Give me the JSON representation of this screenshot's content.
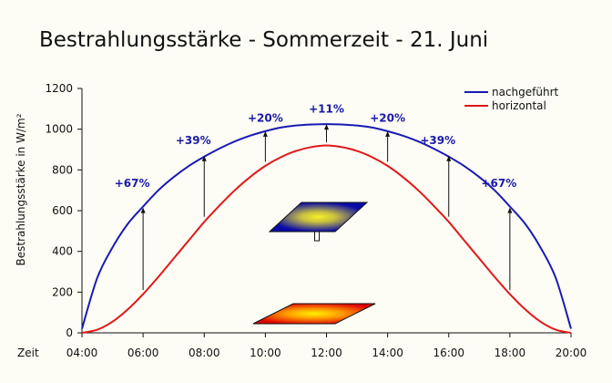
{
  "chart_data": {
    "type": "line",
    "title": "Bestrahlungsstärke - Sommerzeit - 21. Juni",
    "ylabel": "Bestrahlungsstärke in W/m²",
    "xlabel": "Zeit",
    "ylim": [
      0,
      1200
    ],
    "yticks": [
      "0",
      "200",
      "400",
      "600",
      "800",
      "1000",
      "1200"
    ],
    "xlim": [
      "04:00",
      "20:00"
    ],
    "xticks": [
      "04:00",
      "06:00",
      "08:00",
      "10:00",
      "12:00",
      "14:00",
      "16:00",
      "18:00",
      "20:00"
    ],
    "legend_position": "top-right",
    "series": [
      {
        "name": "nachgeführt",
        "color": "#1a1ab4",
        "x": [
          "04:00",
          "04:30",
          "05:00",
          "05:30",
          "06:00",
          "06:30",
          "07:00",
          "07:30",
          "08:00",
          "08:30",
          "09:00",
          "09:30",
          "10:00",
          "10:30",
          "11:00",
          "11:30",
          "12:00",
          "12:30",
          "13:00",
          "13:30",
          "14:00",
          "14:30",
          "15:00",
          "15:30",
          "16:00",
          "16:30",
          "17:00",
          "17:30",
          "18:00",
          "18:30",
          "19:00",
          "19:30",
          "20:00"
        ],
        "values": [
          20,
          270,
          420,
          535,
          620,
          700,
          765,
          820,
          865,
          905,
          940,
          968,
          990,
          1008,
          1018,
          1023,
          1025,
          1023,
          1018,
          1008,
          990,
          968,
          940,
          905,
          865,
          820,
          765,
          700,
          620,
          535,
          420,
          270,
          20
        ]
      },
      {
        "name": "horizontal",
        "color": "#e01818",
        "x": [
          "04:00",
          "04:30",
          "05:00",
          "05:30",
          "06:00",
          "06:30",
          "07:00",
          "07:30",
          "08:00",
          "08:30",
          "09:00",
          "09:30",
          "10:00",
          "10:30",
          "11:00",
          "11:30",
          "12:00",
          "12:30",
          "13:00",
          "13:30",
          "14:00",
          "14:30",
          "15:00",
          "15:30",
          "16:00",
          "16:30",
          "17:00",
          "17:30",
          "18:00",
          "18:30",
          "19:00",
          "19:30",
          "20:00"
        ],
        "values": [
          0,
          15,
          55,
          115,
          190,
          275,
          365,
          455,
          545,
          625,
          700,
          765,
          820,
          862,
          893,
          912,
          920,
          912,
          893,
          862,
          820,
          765,
          700,
          625,
          545,
          455,
          365,
          275,
          190,
          115,
          55,
          15,
          0
        ]
      }
    ],
    "annotations": [
      {
        "x": "06:00",
        "text": "+67%",
        "from": 210,
        "to": 615,
        "label_y": 735
      },
      {
        "x": "08:00",
        "text": "+39%",
        "from": 570,
        "to": 870,
        "label_y": 945
      },
      {
        "x": "10:00",
        "text": "+20%",
        "from": 840,
        "to": 990,
        "label_y": 1055
      },
      {
        "x": "12:00",
        "text": "+11%",
        "from": 935,
        "to": 1025,
        "label_y": 1100
      },
      {
        "x": "14:00",
        "text": "+20%",
        "from": 840,
        "to": 990,
        "label_y": 1055
      },
      {
        "x": "16:00",
        "text": "+39%",
        "from": 570,
        "to": 870,
        "label_y": 945
      },
      {
        "x": "18:00",
        "text": "+67%",
        "from": 210,
        "to": 615,
        "label_y": 735
      }
    ],
    "annotation_color": "#1a1aaa"
  }
}
